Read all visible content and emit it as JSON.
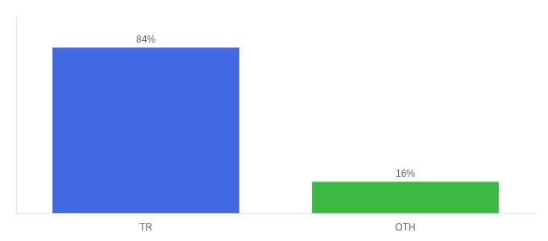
{
  "chart_data": {
    "type": "bar",
    "categories": [
      "TR",
      "OTH"
    ],
    "values": [
      84,
      16
    ],
    "colors": [
      "#4169E1",
      "#3CB943"
    ],
    "value_labels": [
      "84%",
      "16%"
    ],
    "data_labels": true,
    "ylim": [
      0,
      100
    ],
    "tick_labels": "x",
    "grid": false
  }
}
